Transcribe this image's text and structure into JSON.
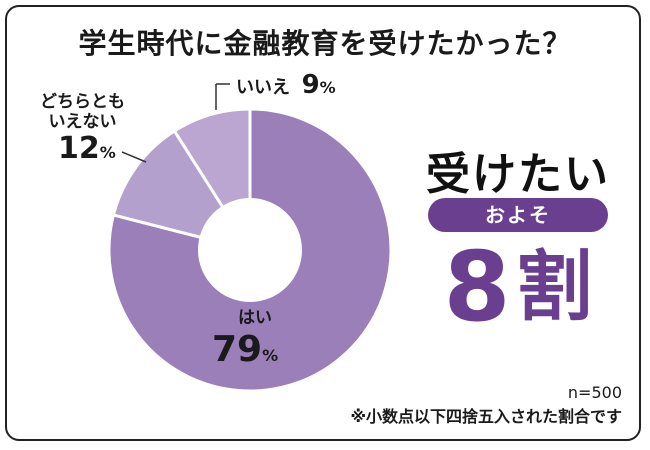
{
  "title": "学生時代に金融教育を受けたかった？",
  "chart_data": {
    "type": "pie",
    "title": "学生時代に金融教育を受けたかった？",
    "categories": [
      "はい",
      "どちらとも いえない",
      "いいえ"
    ],
    "values": [
      79,
      12,
      9
    ],
    "unit": "%",
    "colors": [
      "#9b7fb8",
      "#b3a0cd",
      "#baa6d0"
    ],
    "legend": "none",
    "hole": true
  },
  "labels": {
    "yes_name": "はい",
    "yes_value": "79",
    "neutral_name_line1": "どちらとも",
    "neutral_name_line2": "いえない",
    "neutral_value": "12",
    "no_name": "いいえ",
    "no_value": "9",
    "percent_sign": "%"
  },
  "callout": {
    "main": "受けたい",
    "pill": "およそ",
    "number": "8",
    "unit": "割"
  },
  "notes": {
    "sample": "n=500",
    "rounding": "※小数点以下四捨五入された割合です"
  },
  "colors": {
    "accent": "#6b3f90",
    "text": "#1a1a1a"
  }
}
